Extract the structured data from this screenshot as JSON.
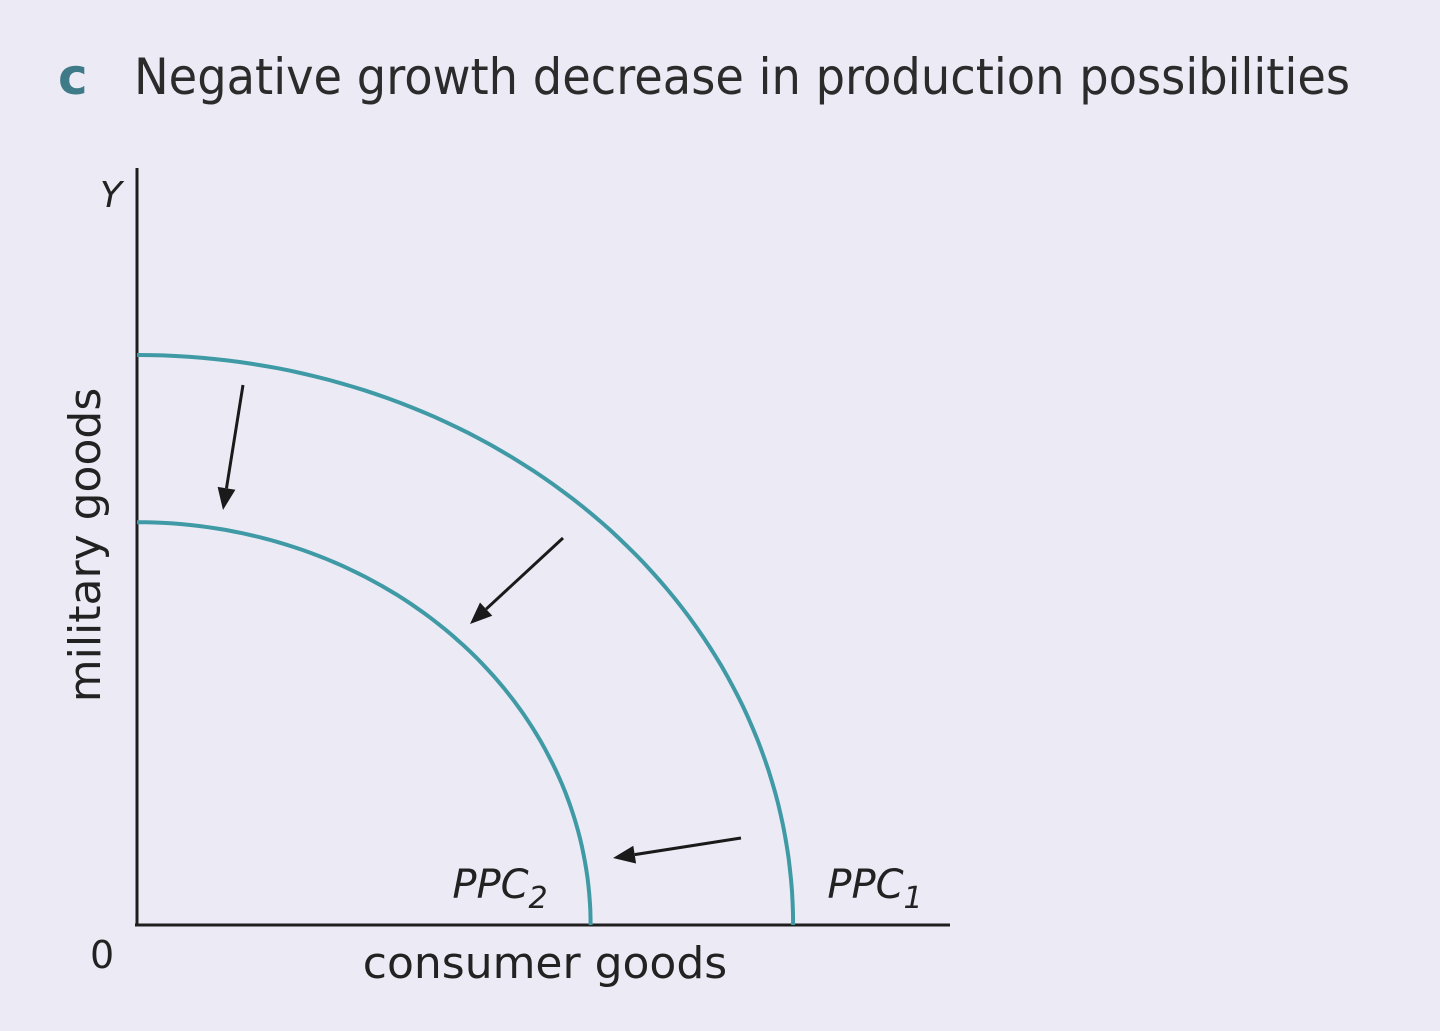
{
  "heading": {
    "letter": "c",
    "text": "Negative growth decrease in production possibilities"
  },
  "colors": {
    "curve": "#3f9aa5",
    "heading_letter": "#3e7a87",
    "background": "#ecebf5"
  },
  "chart_data": {
    "type": "line",
    "title": "Negative growth decrease in production possibilities",
    "xlabel": "consumer goods",
    "ylabel": "military goods",
    "y_axis_letter": "Y",
    "origin_label": "0",
    "xlim": [
      0,
      100
    ],
    "ylim": [
      0,
      100
    ],
    "grid": false,
    "series": [
      {
        "name": "PPC₁",
        "shape": "concave quarter arc",
        "x_intercept": 81,
        "y_intercept": 75
      },
      {
        "name": "PPC₂",
        "shape": "concave quarter arc",
        "x_intercept": 56,
        "y_intercept": 53
      }
    ],
    "annotations": [
      {
        "type": "arrow",
        "meaning": "shift inward from PPC₁ to PPC₂"
      },
      {
        "type": "arrow",
        "meaning": "shift inward from PPC₁ to PPC₂"
      },
      {
        "type": "arrow",
        "meaning": "shift inward from PPC₁ to PPC₂"
      }
    ]
  }
}
